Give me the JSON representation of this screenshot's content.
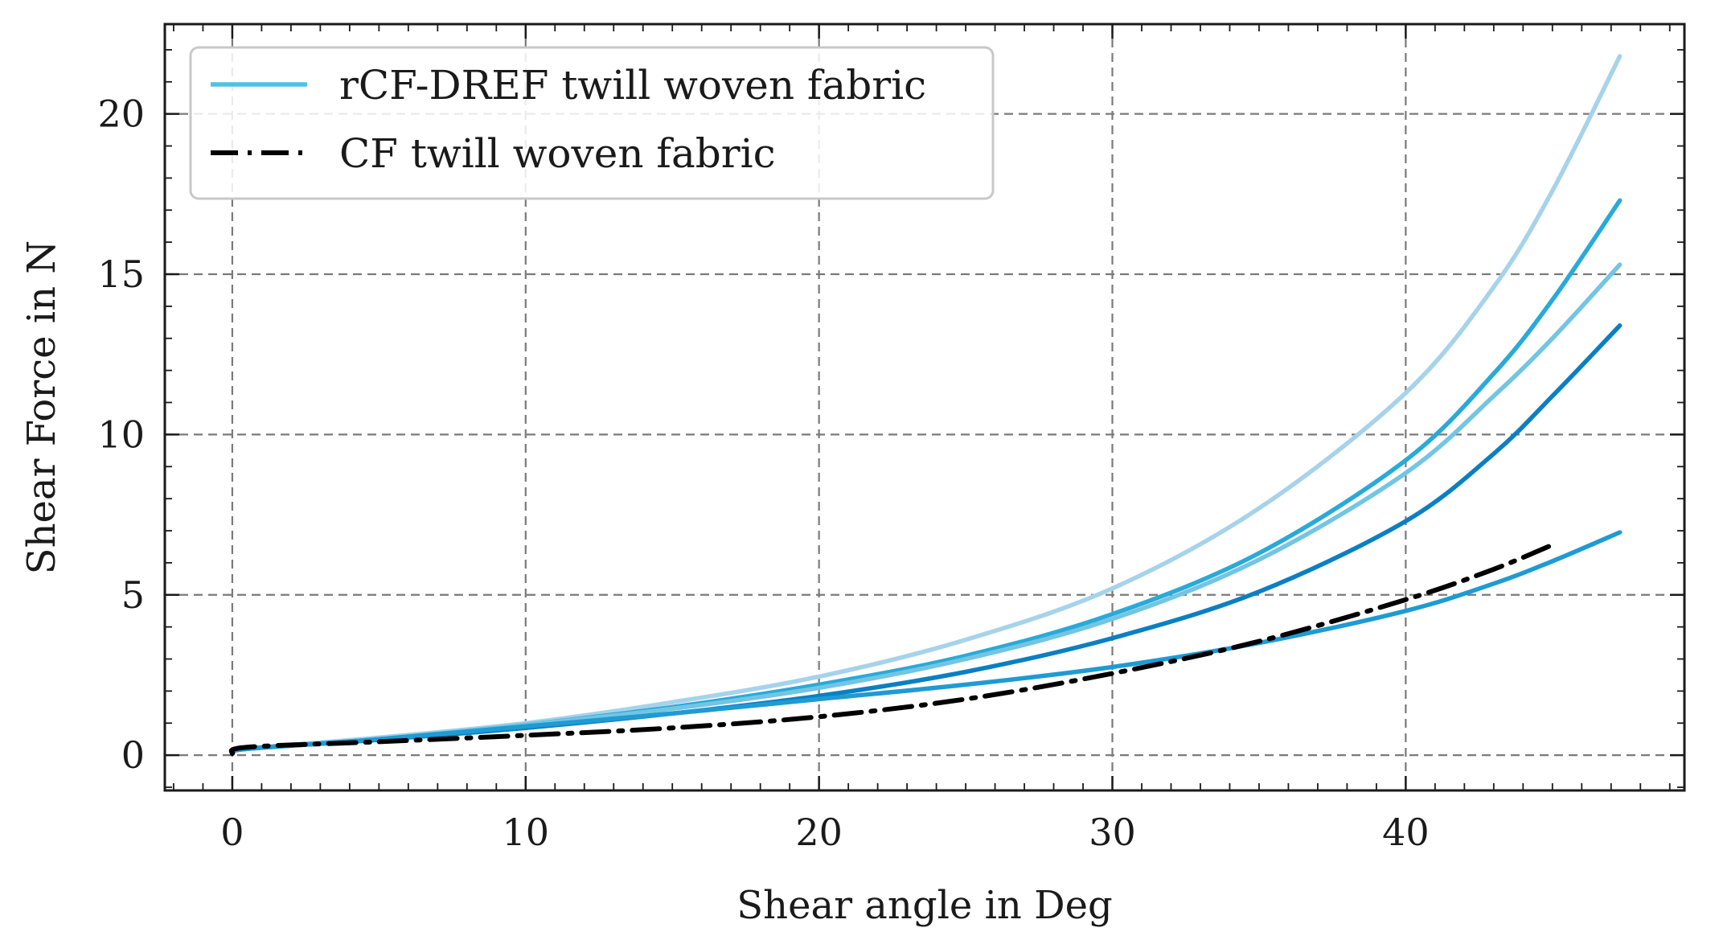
{
  "chart_data": {
    "type": "line",
    "xlabel": "Shear angle in Deg",
    "ylabel": "Shear Force in N",
    "xlim": [
      -2.3,
      49.5
    ],
    "ylim": [
      -1.1,
      22.8
    ],
    "xticks": [
      0,
      10,
      20,
      30,
      40
    ],
    "yticks": [
      0,
      5,
      10,
      15,
      20
    ],
    "grid": true,
    "legend_position": "top-left",
    "legend": [
      {
        "label": "rCF-DREF twill woven fabric",
        "color": "#4cc3e8",
        "style": "solid"
      },
      {
        "label": "CF twill woven fabric",
        "color": "#000000",
        "style": "dashdot"
      }
    ],
    "series": [
      {
        "group": "rCF-DREF twill woven fabric",
        "color": "#a6d3ea",
        "x": [
          0,
          0.5,
          5,
          10,
          15,
          20,
          25,
          30,
          35,
          40,
          43,
          45,
          47.3
        ],
        "y": [
          0.05,
          0.2,
          0.55,
          1.0,
          1.65,
          2.45,
          3.6,
          5.2,
          7.7,
          11.3,
          14.6,
          17.6,
          21.8
        ]
      },
      {
        "group": "rCF-DREF twill woven fabric",
        "color": "#29aad8",
        "x": [
          0,
          0.5,
          5,
          10,
          15,
          20,
          25,
          30,
          35,
          40,
          43,
          45,
          47.3
        ],
        "y": [
          0.05,
          0.2,
          0.5,
          0.95,
          1.5,
          2.2,
          3.1,
          4.4,
          6.3,
          9.2,
          11.9,
          14.2,
          17.3
        ]
      },
      {
        "group": "rCF-DREF twill woven fabric",
        "color": "#72c5e3",
        "x": [
          0,
          0.5,
          5,
          10,
          15,
          20,
          25,
          30,
          35,
          40,
          43,
          45,
          47.3
        ],
        "y": [
          0.05,
          0.2,
          0.5,
          0.95,
          1.45,
          2.1,
          3.0,
          4.25,
          6.1,
          8.8,
          11.2,
          13.0,
          15.3
        ]
      },
      {
        "group": "rCF-DREF twill woven fabric",
        "color": "#0b7fc3",
        "x": [
          0,
          0.5,
          5,
          10,
          15,
          20,
          25,
          30,
          35,
          40,
          43,
          45,
          47.3
        ],
        "y": [
          0.05,
          0.2,
          0.48,
          0.85,
          1.3,
          1.85,
          2.6,
          3.65,
          5.1,
          7.3,
          9.4,
          11.2,
          13.4
        ]
      },
      {
        "group": "rCF-DREF twill woven fabric",
        "color": "#1e9bd3",
        "x": [
          0,
          0.5,
          5,
          10,
          15,
          20,
          25,
          30,
          35,
          40,
          43,
          45,
          47.3
        ],
        "y": [
          0.05,
          0.2,
          0.5,
          0.9,
          1.3,
          1.75,
          2.2,
          2.75,
          3.5,
          4.5,
          5.35,
          6.05,
          6.95
        ]
      },
      {
        "group": "CF twill woven fabric",
        "color": "#000000",
        "x": [
          0,
          0.5,
          5,
          10,
          15,
          20,
          25,
          30,
          35,
          40,
          43,
          45.1
        ],
        "y": [
          0.05,
          0.25,
          0.42,
          0.62,
          0.85,
          1.2,
          1.75,
          2.55,
          3.55,
          4.85,
          5.8,
          6.6
        ]
      }
    ]
  }
}
